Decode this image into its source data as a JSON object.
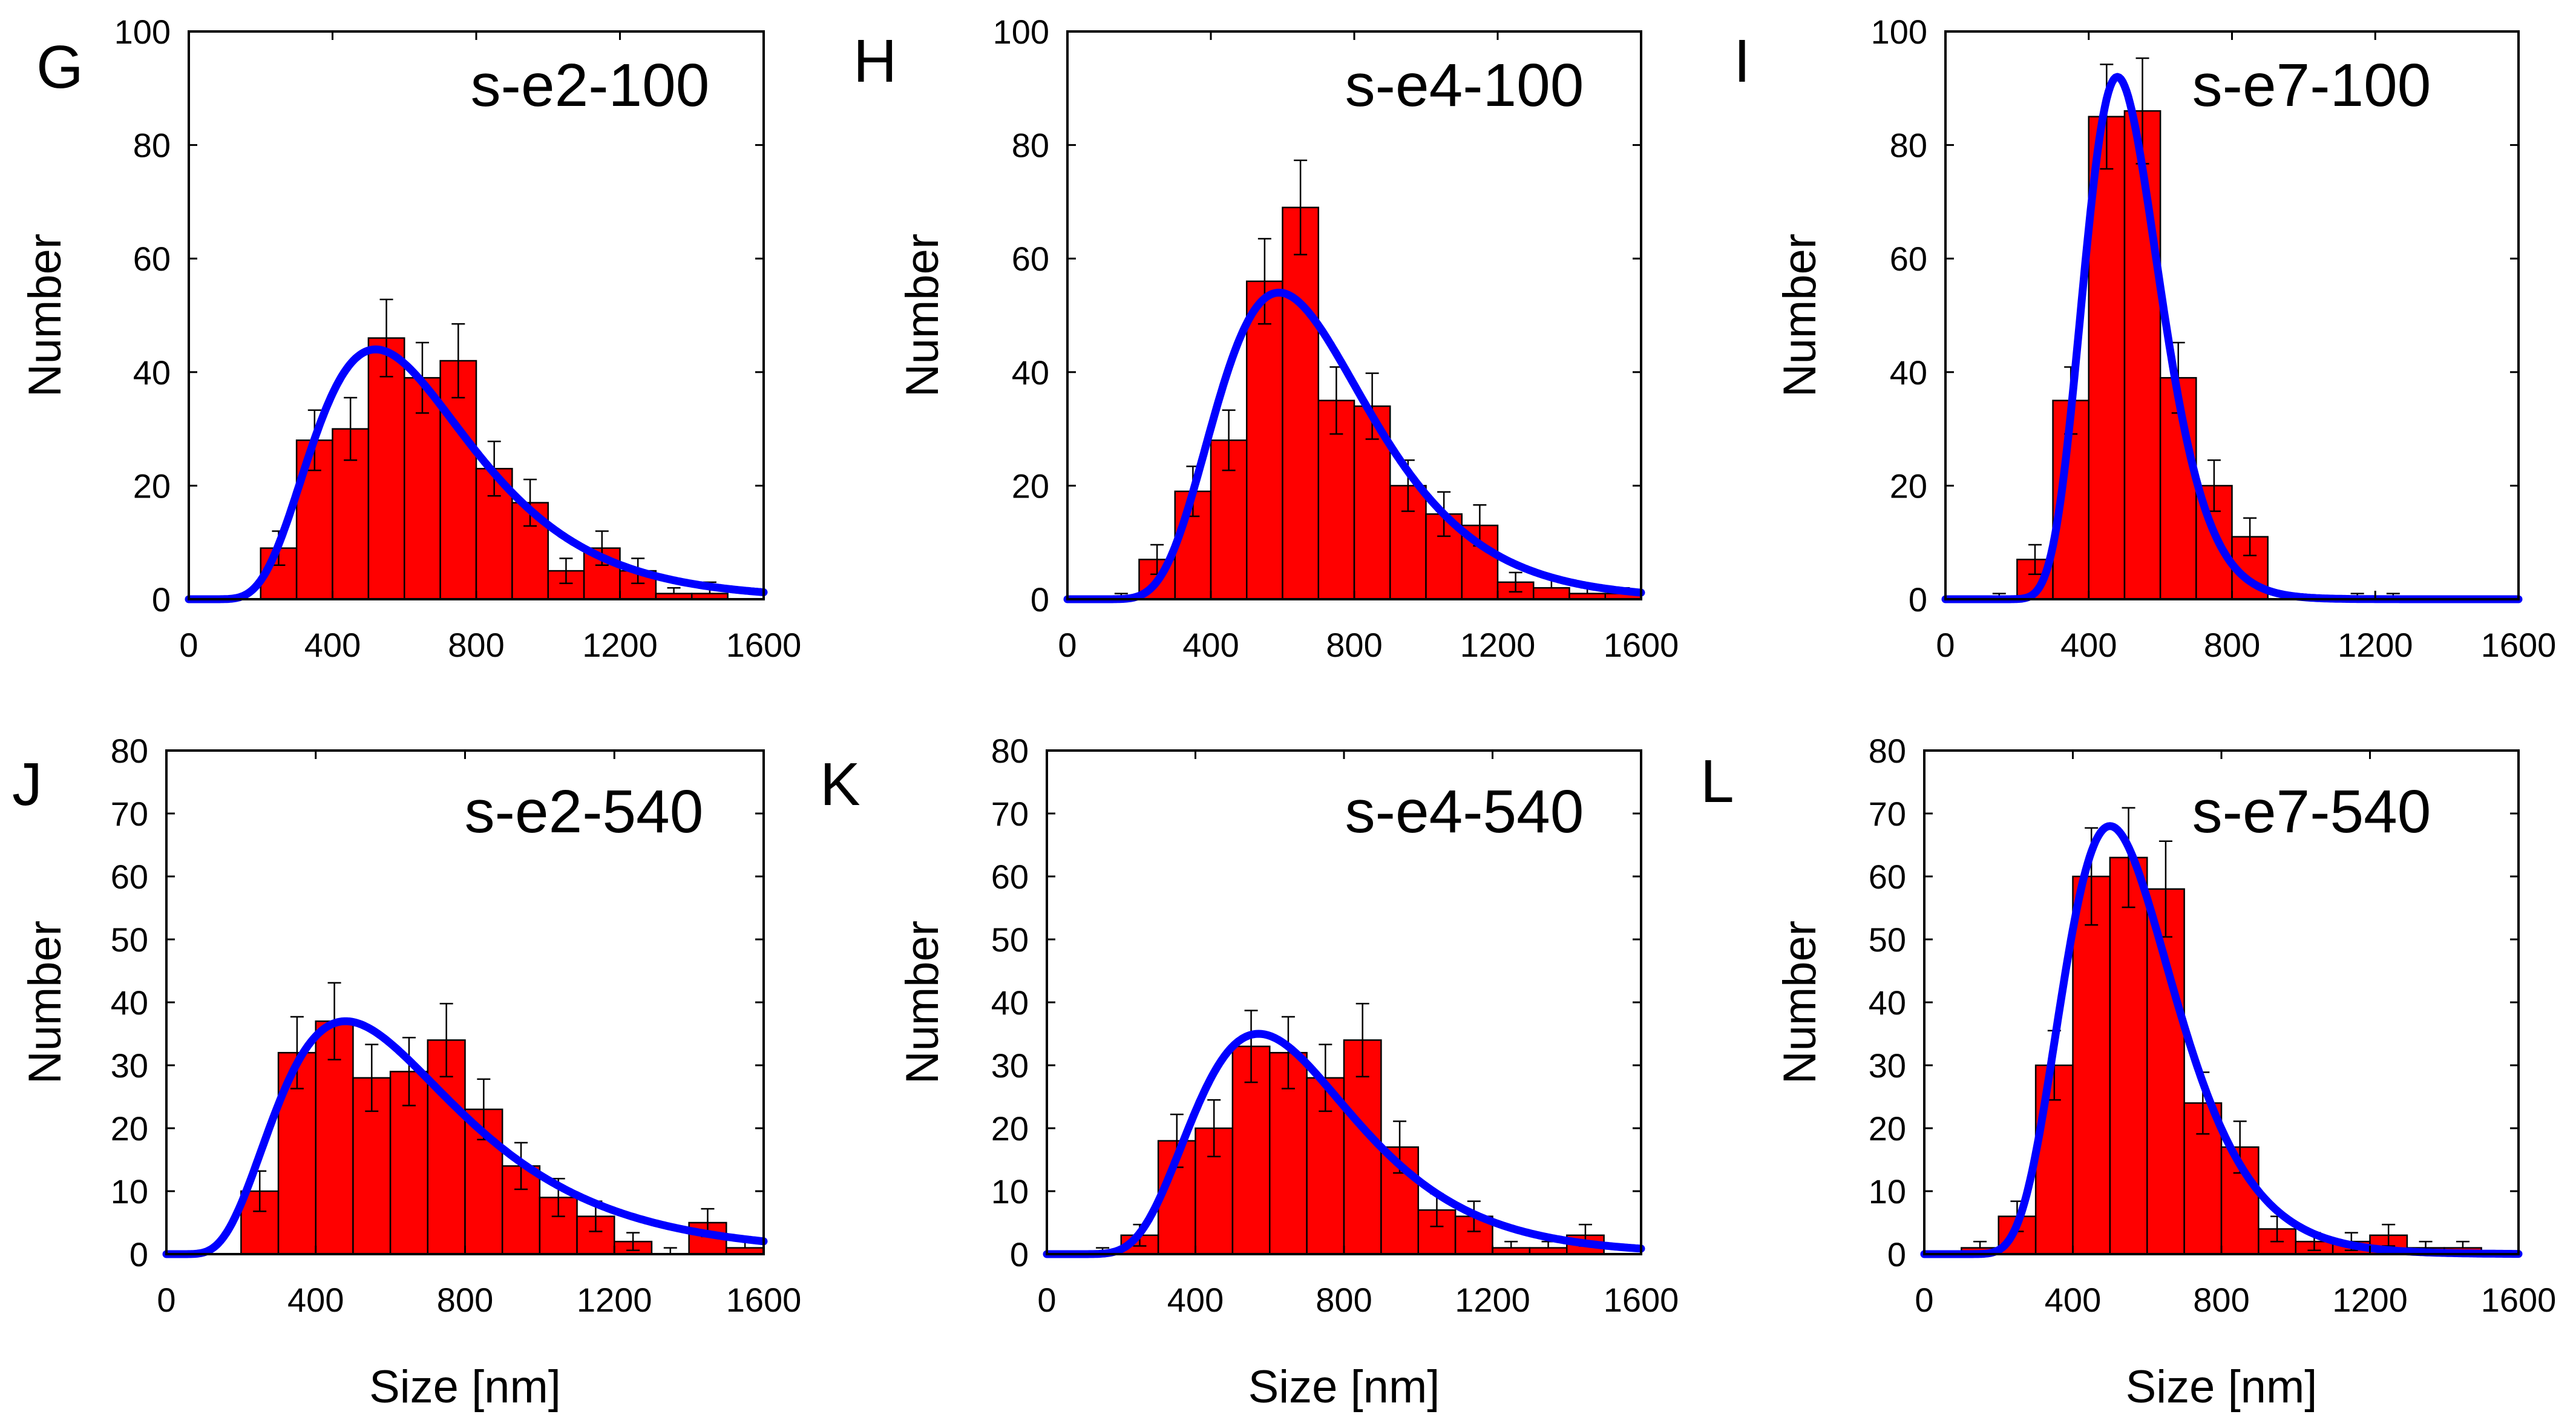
{
  "chart_data": [
    {
      "type": "bar",
      "letter": "G",
      "title": "s-e2-100",
      "xlabel": "",
      "ylabel": "Number",
      "xlim": [
        0,
        1600
      ],
      "ylim": [
        0,
        100
      ],
      "xticks": [
        0,
        400,
        800,
        1200,
        1600
      ],
      "yticks": [
        0,
        20,
        40,
        60,
        80,
        100
      ],
      "bin_width": 100,
      "bins": [
        100,
        200,
        300,
        400,
        500,
        600,
        700,
        800,
        900,
        1000,
        1100,
        1200,
        1300,
        1400,
        1500
      ],
      "values": [
        0,
        9,
        28,
        30,
        46,
        39,
        42,
        23,
        17,
        5,
        9,
        5,
        1,
        1,
        0
      ],
      "errors": [
        0,
        3,
        5.3,
        5.5,
        6.8,
        6.2,
        6.5,
        4.8,
        4.1,
        2.2,
        3,
        2.2,
        1,
        2,
        0
      ],
      "fit": {
        "type": "lognormal",
        "peak_x": 520,
        "peak_y": 44,
        "sigma": 0.42
      }
    },
    {
      "type": "bar",
      "letter": "H",
      "title": "s-e4-100",
      "xlabel": "",
      "ylabel": "Number",
      "xlim": [
        0,
        1600
      ],
      "ylim": [
        0,
        100
      ],
      "xticks": [
        0,
        400,
        800,
        1200,
        1600
      ],
      "yticks": [
        0,
        20,
        40,
        60,
        80,
        100
      ],
      "bin_width": 100,
      "bins": [
        100,
        200,
        300,
        400,
        500,
        600,
        700,
        800,
        900,
        1000,
        1100,
        1200,
        1300,
        1400,
        1500
      ],
      "values": [
        0,
        7,
        19,
        28,
        56,
        69,
        35,
        34,
        20,
        15,
        13,
        3,
        2,
        1,
        1
      ],
      "errors": [
        1,
        2.6,
        4.4,
        5.3,
        7.5,
        8.3,
        5.9,
        5.8,
        4.5,
        3.9,
        3.6,
        1.7,
        2,
        1,
        1
      ],
      "fit": {
        "type": "lognormal",
        "peak_x": 590,
        "peak_y": 54,
        "sigma": 0.36
      }
    },
    {
      "type": "bar",
      "letter": "I",
      "title": "s-e7-100",
      "xlabel": "",
      "ylabel": "Number",
      "xlim": [
        0,
        1600
      ],
      "ylim": [
        0,
        100
      ],
      "xticks": [
        0,
        400,
        800,
        1200,
        1600
      ],
      "yticks": [
        0,
        20,
        40,
        60,
        80,
        100
      ],
      "bin_width": 100,
      "bins": [
        100,
        200,
        300,
        400,
        500,
        600,
        700,
        800,
        900,
        1000,
        1100,
        1200,
        1300,
        1400,
        1500
      ],
      "values": [
        0,
        7,
        35,
        85,
        86,
        39,
        20,
        11,
        0,
        0,
        0,
        0,
        0,
        0,
        0
      ],
      "errors": [
        1,
        2.6,
        5.9,
        9.2,
        9.3,
        6.2,
        4.5,
        3.3,
        0,
        0,
        1,
        1,
        0,
        0,
        0
      ],
      "fit": {
        "type": "lognormal",
        "peak_x": 480,
        "peak_y": 92,
        "sigma": 0.22
      }
    },
    {
      "type": "bar",
      "letter": "J",
      "title": "s-e2-540",
      "xlabel": "Size [nm]",
      "ylabel": "Number",
      "xlim": [
        0,
        1600
      ],
      "ylim": [
        0,
        80
      ],
      "xticks": [
        0,
        400,
        800,
        1200,
        1600
      ],
      "yticks": [
        0,
        10,
        20,
        30,
        40,
        50,
        60,
        70,
        80
      ],
      "bin_width": 100,
      "bins": [
        200,
        300,
        400,
        500,
        600,
        700,
        800,
        900,
        1000,
        1100,
        1200,
        1300,
        1400,
        1500
      ],
      "values": [
        10,
        32,
        37,
        28,
        29,
        34,
        23,
        14,
        9,
        6,
        2,
        0,
        5,
        1
      ],
      "errors": [
        3.2,
        5.7,
        6.1,
        5.3,
        5.4,
        5.8,
        4.8,
        3.7,
        3,
        2.4,
        1.4,
        1,
        2.2,
        1
      ],
      "fit": {
        "type": "lognormal",
        "peak_x": 480,
        "peak_y": 37,
        "sigma": 0.5
      }
    },
    {
      "type": "bar",
      "letter": "K",
      "title": "s-e4-540",
      "xlabel": "Size [nm]",
      "ylabel": "Number",
      "xlim": [
        0,
        1600
      ],
      "ylim": [
        0,
        80
      ],
      "xticks": [
        0,
        400,
        800,
        1200,
        1600
      ],
      "yticks": [
        0,
        10,
        20,
        30,
        40,
        50,
        60,
        70,
        80
      ],
      "bin_width": 100,
      "bins": [
        100,
        200,
        300,
        400,
        500,
        600,
        700,
        800,
        900,
        1000,
        1100,
        1200,
        1300,
        1400
      ],
      "values": [
        0,
        3,
        18,
        20,
        33,
        32,
        28,
        34,
        17,
        7,
        6,
        1,
        1,
        3
      ],
      "errors": [
        1,
        1.7,
        4.2,
        4.5,
        5.7,
        5.7,
        5.3,
        5.8,
        4.1,
        2.6,
        2.4,
        1,
        1,
        1.7
      ],
      "fit": {
        "type": "lognormal",
        "peak_x": 570,
        "peak_y": 35,
        "sigma": 0.38
      }
    },
    {
      "type": "bar",
      "letter": "L",
      "title": "s-e7-540",
      "xlabel": "Size [nm]",
      "ylabel": "Number",
      "xlim": [
        0,
        1600
      ],
      "ylim": [
        0,
        80
      ],
      "xticks": [
        0,
        400,
        800,
        1200,
        1600
      ],
      "yticks": [
        0,
        10,
        20,
        30,
        40,
        50,
        60,
        70,
        80
      ],
      "bin_width": 100,
      "bins": [
        100,
        200,
        300,
        400,
        500,
        600,
        700,
        800,
        900,
        1000,
        1100,
        1200,
        1300,
        1400
      ],
      "values": [
        1,
        6,
        30,
        60,
        63,
        58,
        24,
        17,
        4,
        2,
        2,
        3,
        1,
        1
      ],
      "errors": [
        1,
        2.4,
        5.5,
        7.7,
        7.9,
        7.6,
        4.9,
        4.1,
        2,
        1.4,
        1.4,
        1.7,
        1,
        1
      ],
      "fit": {
        "type": "lognormal",
        "peak_x": 500,
        "peak_y": 68,
        "sigma": 0.3
      }
    }
  ]
}
